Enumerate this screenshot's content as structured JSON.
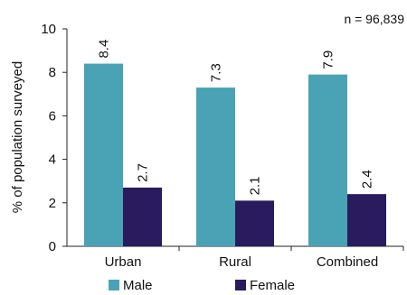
{
  "chart_data": {
    "type": "bar",
    "categories": [
      "Urban",
      "Rural",
      "Combined"
    ],
    "series": [
      {
        "name": "Male",
        "values": [
          8.4,
          7.3,
          7.9
        ],
        "color": "#4aa3b4"
      },
      {
        "name": "Female",
        "values": [
          2.7,
          2.1,
          2.4
        ],
        "color": "#2a1a5e"
      }
    ],
    "ylabel": "% of population surveyed",
    "xlabel": "",
    "ylim": [
      0,
      10
    ],
    "yticks": [
      0,
      2,
      4,
      6,
      8,
      10
    ],
    "annotation": "n = 96,839",
    "legend_position": "bottom",
    "grid": false
  }
}
